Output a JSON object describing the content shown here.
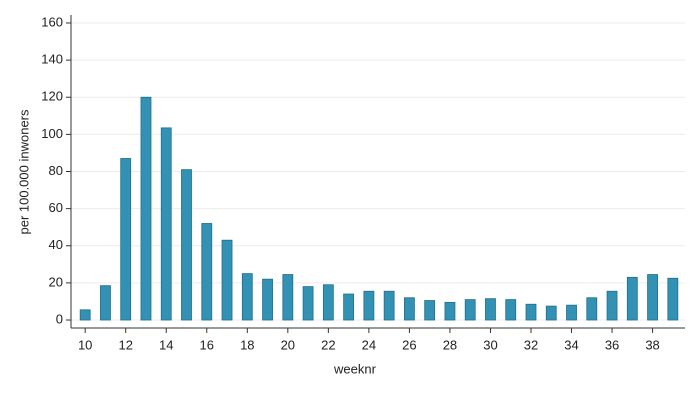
{
  "chart_data": {
    "type": "bar",
    "x": [
      10,
      11,
      12,
      13,
      14,
      15,
      16,
      17,
      18,
      19,
      20,
      21,
      22,
      23,
      24,
      25,
      26,
      27,
      28,
      29,
      30,
      31,
      32,
      33,
      34,
      35,
      36,
      37,
      38,
      39
    ],
    "values": [
      5.5,
      18.5,
      87,
      120,
      103.5,
      81,
      52,
      43,
      25,
      22,
      24.5,
      18,
      19,
      14,
      15.5,
      15.5,
      12,
      10.5,
      9.5,
      11,
      11.5,
      11,
      8.5,
      7.5,
      8,
      12,
      15.5,
      23,
      24.5,
      22.5
    ],
    "color": "#3391b3",
    "xlabel": "weeknr",
    "ylabel": "per 100.000 inwoners",
    "xlim": [
      9.3,
      39.6
    ],
    "xticks": [
      10,
      12,
      14,
      16,
      18,
      20,
      22,
      24,
      26,
      28,
      30,
      32,
      34,
      36,
      38
    ],
    "ylim": [
      -4.3,
      164.3
    ],
    "yticks": [
      0,
      20,
      40,
      60,
      80,
      100,
      120,
      140,
      160
    ],
    "grid": true
  }
}
